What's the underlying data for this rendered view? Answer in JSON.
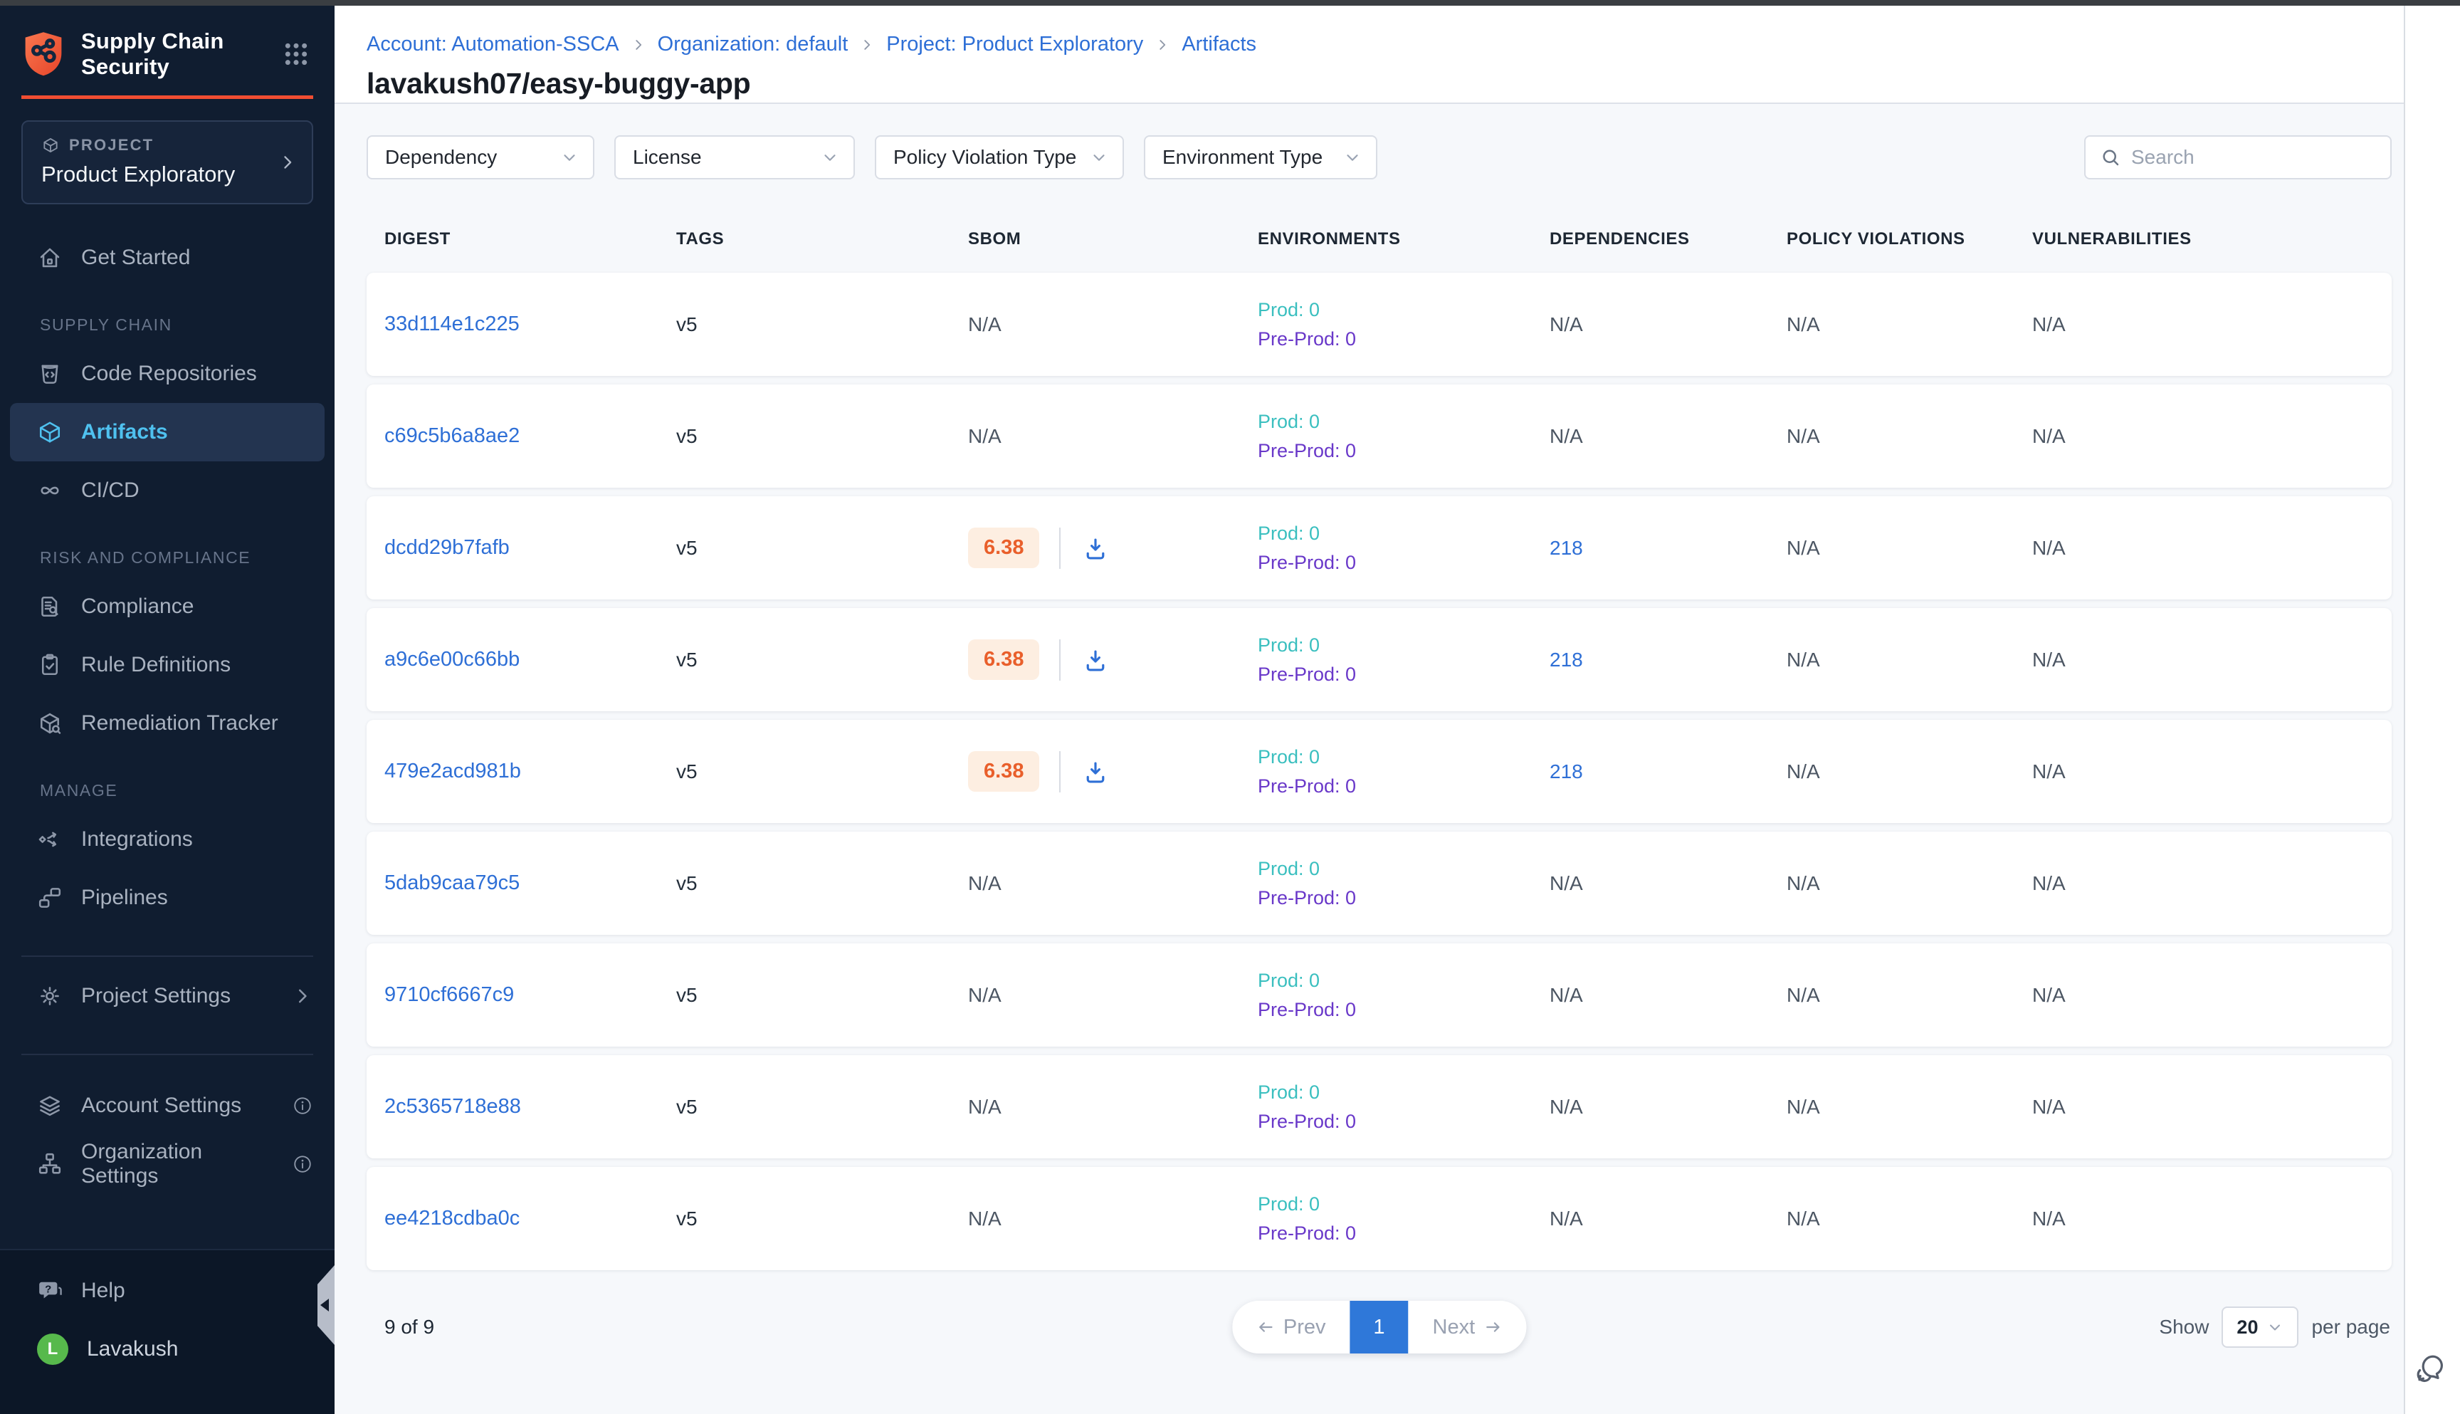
{
  "colors": {
    "brand_orange": "#f14e32",
    "sidebar_bg": "#101d30",
    "active_item_text": "#4fc1ef",
    "link_blue": "#2e6fd6",
    "prod_teal": "#3abfbf",
    "preprod_purple": "#6938c9",
    "sbom_badge_text": "#e95f2b",
    "sbom_badge_bg": "#fdeee1",
    "active_page_blue": "#2f78d9",
    "avatar_green": "#57b94c"
  },
  "sidebar": {
    "logo": {
      "line1": "Supply Chain",
      "line2": "Security"
    },
    "project": {
      "label": "PROJECT",
      "name": "Product Exploratory"
    },
    "items_top": [
      {
        "id": "get-started",
        "label": "Get Started",
        "icon": "home"
      }
    ],
    "sections": [
      {
        "title": "SUPPLY CHAIN",
        "items": [
          {
            "id": "code-repositories",
            "label": "Code Repositories",
            "icon": "code-repo"
          },
          {
            "id": "artifacts",
            "label": "Artifacts",
            "icon": "cube",
            "active": true
          },
          {
            "id": "ci-cd",
            "label": "CI/CD",
            "icon": "infinity"
          }
        ]
      },
      {
        "title": "RISK AND COMPLIANCE",
        "items": [
          {
            "id": "compliance",
            "label": "Compliance",
            "icon": "doc-search"
          },
          {
            "id": "rule-definitions",
            "label": "Rule Definitions",
            "icon": "clipboard-check"
          },
          {
            "id": "remediation-tracker",
            "label": "Remediation Tracker",
            "icon": "box-wrench"
          }
        ]
      },
      {
        "title": "MANAGE",
        "items": [
          {
            "id": "integrations",
            "label": "Integrations",
            "icon": "integrations"
          },
          {
            "id": "pipelines",
            "label": "Pipelines",
            "icon": "pipelines"
          }
        ]
      }
    ],
    "settings": [
      {
        "id": "project-settings",
        "label": "Project Settings",
        "icon": "gear",
        "right": "chevron-right"
      },
      {
        "id": "account-settings",
        "label": "Account Settings",
        "icon": "layers",
        "right": "info"
      },
      {
        "id": "organization-settings",
        "label": "Organization Settings",
        "icon": "org",
        "right": "info"
      }
    ],
    "footer": {
      "help_label": "Help",
      "user_name": "Lavakush",
      "avatar_initial": "L"
    }
  },
  "header": {
    "breadcrumb": [
      "Account: Automation-SSCA",
      "Organization: default",
      "Project: Product Exploratory",
      "Artifacts"
    ],
    "title": "lavakush07/easy-buggy-app"
  },
  "filters": {
    "dropdowns": [
      "Dependency",
      "License",
      "Policy Violation Type",
      "Environment Type"
    ],
    "search_placeholder": "Search"
  },
  "table": {
    "columns": [
      "DIGEST",
      "TAGS",
      "SBOM",
      "ENVIRONMENTS",
      "DEPENDENCIES",
      "POLICY VIOLATIONS",
      "VULNERABILITIES"
    ],
    "rows": [
      {
        "digest": "33d114e1c225",
        "tag": "v5",
        "sbom": "N/A",
        "sbom_score": null,
        "prod": "Prod: 0",
        "preprod": "Pre-Prod: 0",
        "dependencies": "N/A",
        "policy_violations": "N/A",
        "vulnerabilities": "N/A"
      },
      {
        "digest": "c69c5b6a8ae2",
        "tag": "v5",
        "sbom": "N/A",
        "sbom_score": null,
        "prod": "Prod: 0",
        "preprod": "Pre-Prod: 0",
        "dependencies": "N/A",
        "policy_violations": "N/A",
        "vulnerabilities": "N/A"
      },
      {
        "digest": "dcdd29b7fafb",
        "tag": "v5",
        "sbom": "",
        "sbom_score": "6.38",
        "prod": "Prod: 0",
        "preprod": "Pre-Prod: 0",
        "dependencies": "218",
        "policy_violations": "N/A",
        "vulnerabilities": "N/A"
      },
      {
        "digest": "a9c6e00c66bb",
        "tag": "v5",
        "sbom": "",
        "sbom_score": "6.38",
        "prod": "Prod: 0",
        "preprod": "Pre-Prod: 0",
        "dependencies": "218",
        "policy_violations": "N/A",
        "vulnerabilities": "N/A"
      },
      {
        "digest": "479e2acd981b",
        "tag": "v5",
        "sbom": "",
        "sbom_score": "6.38",
        "prod": "Prod: 0",
        "preprod": "Pre-Prod: 0",
        "dependencies": "218",
        "policy_violations": "N/A",
        "vulnerabilities": "N/A"
      },
      {
        "digest": "5dab9caa79c5",
        "tag": "v5",
        "sbom": "N/A",
        "sbom_score": null,
        "prod": "Prod: 0",
        "preprod": "Pre-Prod: 0",
        "dependencies": "N/A",
        "policy_violations": "N/A",
        "vulnerabilities": "N/A"
      },
      {
        "digest": "9710cf6667c9",
        "tag": "v5",
        "sbom": "N/A",
        "sbom_score": null,
        "prod": "Prod: 0",
        "preprod": "Pre-Prod: 0",
        "dependencies": "N/A",
        "policy_violations": "N/A",
        "vulnerabilities": "N/A"
      },
      {
        "digest": "2c5365718e88",
        "tag": "v5",
        "sbom": "N/A",
        "sbom_score": null,
        "prod": "Prod: 0",
        "preprod": "Pre-Prod: 0",
        "dependencies": "N/A",
        "policy_violations": "N/A",
        "vulnerabilities": "N/A"
      },
      {
        "digest": "ee4218cdba0c",
        "tag": "v5",
        "sbom": "N/A",
        "sbom_score": null,
        "prod": "Prod: 0",
        "preprod": "Pre-Prod: 0",
        "dependencies": "N/A",
        "policy_violations": "N/A",
        "vulnerabilities": "N/A"
      }
    ]
  },
  "pagination": {
    "summary": "9 of 9",
    "prev_label": "Prev",
    "current_page": "1",
    "next_label": "Next",
    "show_label": "Show",
    "page_size": "20",
    "per_page_label": "per page"
  }
}
